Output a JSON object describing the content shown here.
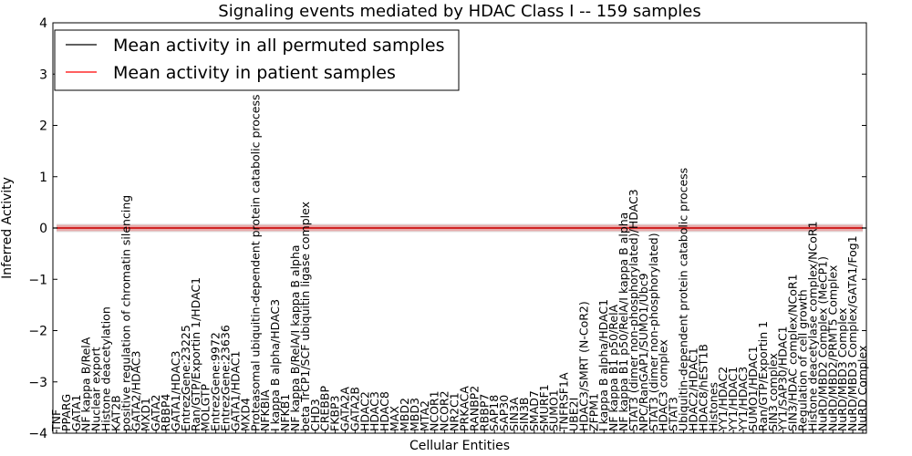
{
  "chart_data": {
    "type": "line",
    "title": "Signaling events mediated by HDAC Class I -- 159 samples",
    "xlabel": "Cellular Entities",
    "ylabel": "Inferred Activity",
    "ylim": [
      -4,
      4
    ],
    "yticks": [
      -4,
      -3,
      -2,
      -1,
      0,
      1,
      2,
      3,
      4
    ],
    "ytick_labels": [
      "−4",
      "−3",
      "−2",
      "−1",
      "0",
      "1",
      "2",
      "3",
      "4"
    ],
    "grid": false,
    "legend_position": "upper-left",
    "series": [
      {
        "name": "Mean activity in all permuted samples",
        "color": "#000000",
        "band_color": "#c8c8c8",
        "value": 0.0,
        "band": 0.08
      },
      {
        "name": "Mean activity in patient samples",
        "color": "#ff0000",
        "band_color": "#f08080",
        "value": 0.0,
        "band": 0.06
      }
    ],
    "categories": [
      "TNF",
      "PPARG",
      "GATA1",
      "NF kappa B/RelA",
      "Nuclear export",
      "Histone deacetylation",
      "KAT2B",
      "positive regulation of chromatin silencing",
      "GATA2/HDAC3",
      "MXD1",
      "GATA2",
      "RBBP4",
      "GATA1/HDAC3",
      "EntrezGene:23225",
      "Ran/GTP/Exportin 1/HDAC1",
      "MOLGTP",
      "EntrezGene:9972",
      "EntrezGene:23636",
      "GATA1/HDAC1",
      "MXD4",
      "Proteasomal ubiquitin-dependent protein catabolic process",
      "NFKBIA",
      "I kappa B alpha/HDAC3",
      "NFKB1",
      "NF kappa B/RelA/I kappa B alpha",
      "beta TrCP1/SCF ubiquitin ligase complex",
      "CHD3",
      "CREBBP",
      "FKBP3",
      "GATA2A",
      "GATA2B",
      "HDAC2",
      "HDAC3",
      "HDAC8",
      "MAX",
      "MBD2",
      "MBD3",
      "MTA2",
      "NCOR1",
      "NCOR2",
      "NR2C1",
      "PRKACA",
      "RANBP2",
      "RBBP7",
      "SAP18",
      "SAP30",
      "SIN3A",
      "SIN3B",
      "SMAD7",
      "SMURF1",
      "SUMO1",
      "TNFRSF1A",
      "UBE2I",
      "HDAC3/SMRT (N-CoR2)",
      "ZFPM1",
      "I kappa B alpha/HDAC1",
      "NF kappa B1 p50/RelA",
      "NF kappa B1 p50/RelA/I kappa B alpha",
      "STAT3 (dimer non-phosphorylated)/HDAC3",
      "NPC/RanGAP1/SUMO1/Ubc9",
      "STAT3 (dimer non-phosphorylated)",
      "HDAC3 complex",
      "STAT3",
      "Ubiquitin-dependent protein catabolic process",
      "HDAC2/HDAC1",
      "HDAC8/hEST1B",
      "Histones",
      "YY1/HDAC2",
      "YY1/HDAC1",
      "YY1/HDAC3",
      "SUMO1/HDAC1",
      "Ran/GTP/Exportin 1",
      "SIN3 complex",
      "YY1/SAP30/HDAC1",
      "SIN3/HDAC complex/NCoR1",
      "Regulation of cell growth",
      "Histone deacetylase complex/NCoR1",
      "NuRD/MBD2 Complex (MeCP1)",
      "NuRD/MBD2/PRMT5 Complex",
      "NuRD/MBD3 Complex",
      "NuRD/MBD3 Complex/GATA1/Fog1",
      "NuRD Complex"
    ]
  }
}
